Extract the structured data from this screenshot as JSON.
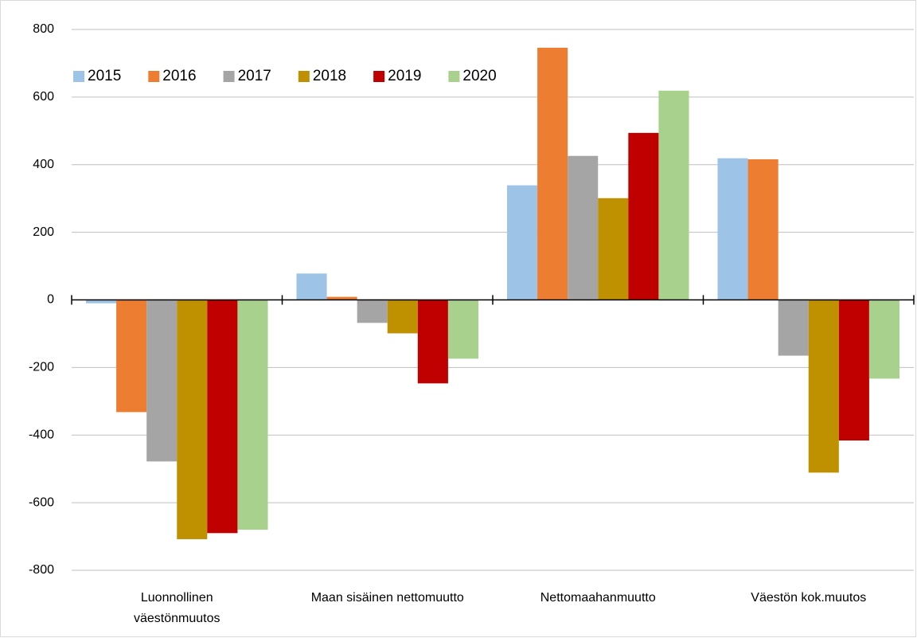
{
  "chart_data": {
    "type": "bar",
    "categories": [
      "Luonnollinen väestönmuutos",
      "Maan sisäinen nettomuutto",
      "Nettomaahanmuutto",
      "Väestön kok.muutos"
    ],
    "series": [
      {
        "name": "2015",
        "color": "#9dc3e6",
        "values": [
          -10,
          78,
          339,
          419
        ]
      },
      {
        "name": "2016",
        "color": "#ed7d31",
        "values": [
          -332,
          9,
          746,
          416
        ]
      },
      {
        "name": "2017",
        "color": "#a5a5a5",
        "values": [
          -478,
          -68,
          426,
          -165
        ]
      },
      {
        "name": "2018",
        "color": "#bf9000",
        "values": [
          -708,
          -99,
          301,
          -511
        ]
      },
      {
        "name": "2019",
        "color": "#c00000",
        "values": [
          -690,
          -247,
          494,
          -416
        ]
      },
      {
        "name": "2020",
        "color": "#a9d18e",
        "values": [
          -680,
          -174,
          619,
          -233
        ]
      }
    ],
    "ylim": [
      -800,
      800
    ],
    "yticks": [
      -800,
      -600,
      -400,
      -200,
      0,
      200,
      400,
      600,
      800
    ],
    "grid": true,
    "legend": "top-left"
  }
}
